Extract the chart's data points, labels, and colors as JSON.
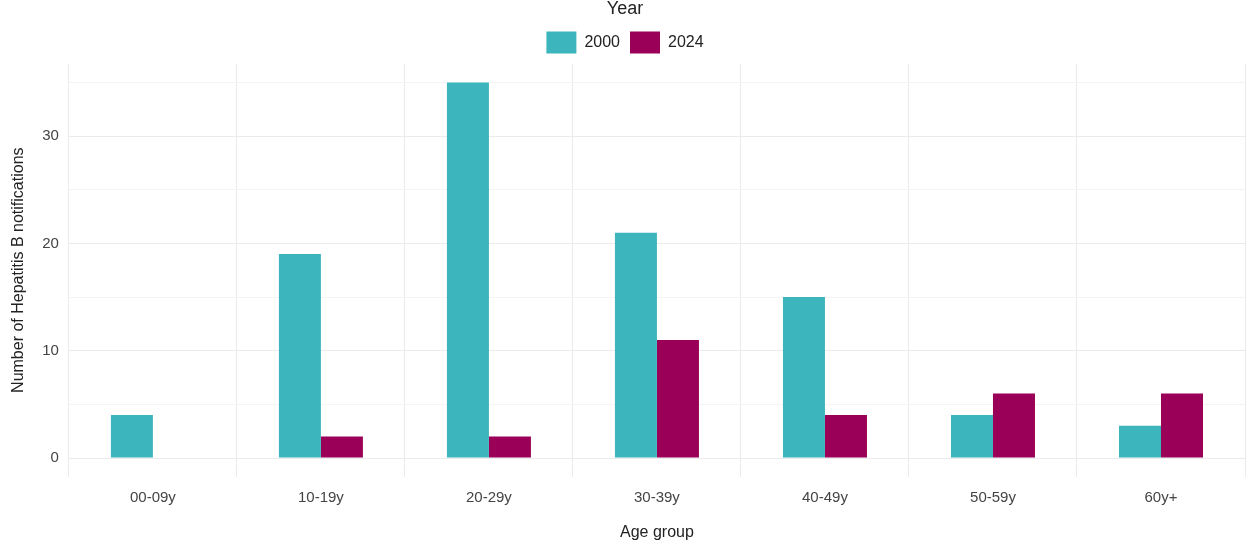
{
  "chart_data": {
    "type": "bar",
    "xlabel": "Age group",
    "ylabel": "Number of Hepatitis B notifications",
    "legend_title": "Year",
    "categories": [
      "00-09y",
      "10-19y",
      "20-29y",
      "30-39y",
      "40-49y",
      "50-59y",
      "60y+"
    ],
    "series": [
      {
        "name": "2000",
        "color": "#3cb5bc",
        "values": [
          4,
          19,
          35,
          21,
          15,
          4,
          3
        ]
      },
      {
        "name": "2024",
        "color": "#9a0058",
        "values": [
          0,
          2,
          2,
          11,
          4,
          6,
          6
        ]
      }
    ],
    "ylim": [
      -1.75,
      36.75
    ],
    "yticks": [
      0,
      {
        "value": 5,
        "label": null
      },
      10,
      {
        "value": 15,
        "label": null
      },
      20,
      {
        "value": 25,
        "label": null
      },
      30,
      {
        "value": 35,
        "label": null
      }
    ],
    "grid": true,
    "legend": "top"
  }
}
